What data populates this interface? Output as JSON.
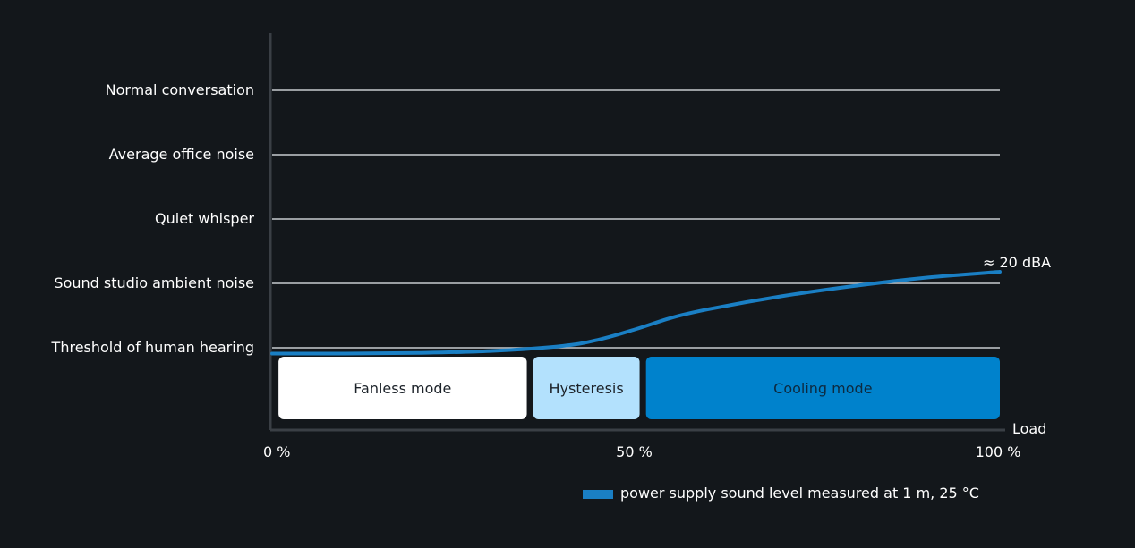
{
  "chart_data": {
    "type": "line",
    "xlabel": "Load",
    "x_ticks": [
      {
        "value": 0,
        "label": "0 %"
      },
      {
        "value": 50,
        "label": "50 %"
      },
      {
        "value": 100,
        "label": "100 %"
      }
    ],
    "xlim": [
      0,
      100
    ],
    "y_levels": [
      {
        "level": 1,
        "label": "Threshold of human hearing"
      },
      {
        "level": 2,
        "label": "Sound studio ambient noise"
      },
      {
        "level": 3,
        "label": "Quiet whisper"
      },
      {
        "level": 4,
        "label": "Average office noise"
      },
      {
        "level": 5,
        "label": "Normal conversation"
      }
    ],
    "series": [
      {
        "name": "power supply sound level measured at 1 m, 25 °C",
        "color": "#1a7fc4",
        "x": [
          0,
          10,
          20,
          30,
          40,
          45,
          50,
          55,
          60,
          70,
          80,
          90,
          100
        ],
        "y": [
          0.91,
          0.91,
          0.92,
          0.95,
          1.03,
          1.13,
          1.29,
          1.47,
          1.6,
          1.8,
          1.96,
          2.09,
          2.18
        ]
      }
    ],
    "end_annotation": "≈ 20 dBA",
    "modes": [
      {
        "label": "Fanless mode",
        "start": 1,
        "end": 35,
        "color": "#ffffff",
        "text_color": "#1d232a"
      },
      {
        "label": "Hysteresis",
        "start": 36,
        "end": 50.5,
        "color": "#b3e1fd",
        "text_color": "#1d232a"
      },
      {
        "label": "Cooling mode",
        "start": 51.5,
        "end": 100,
        "color": "#0082cc",
        "text_color": "#0d2a40"
      }
    ],
    "colors": {
      "background": "#13171b",
      "grid": "#c8ccd0",
      "axis": "#3a3f45",
      "line": "#1a7fc4"
    }
  }
}
